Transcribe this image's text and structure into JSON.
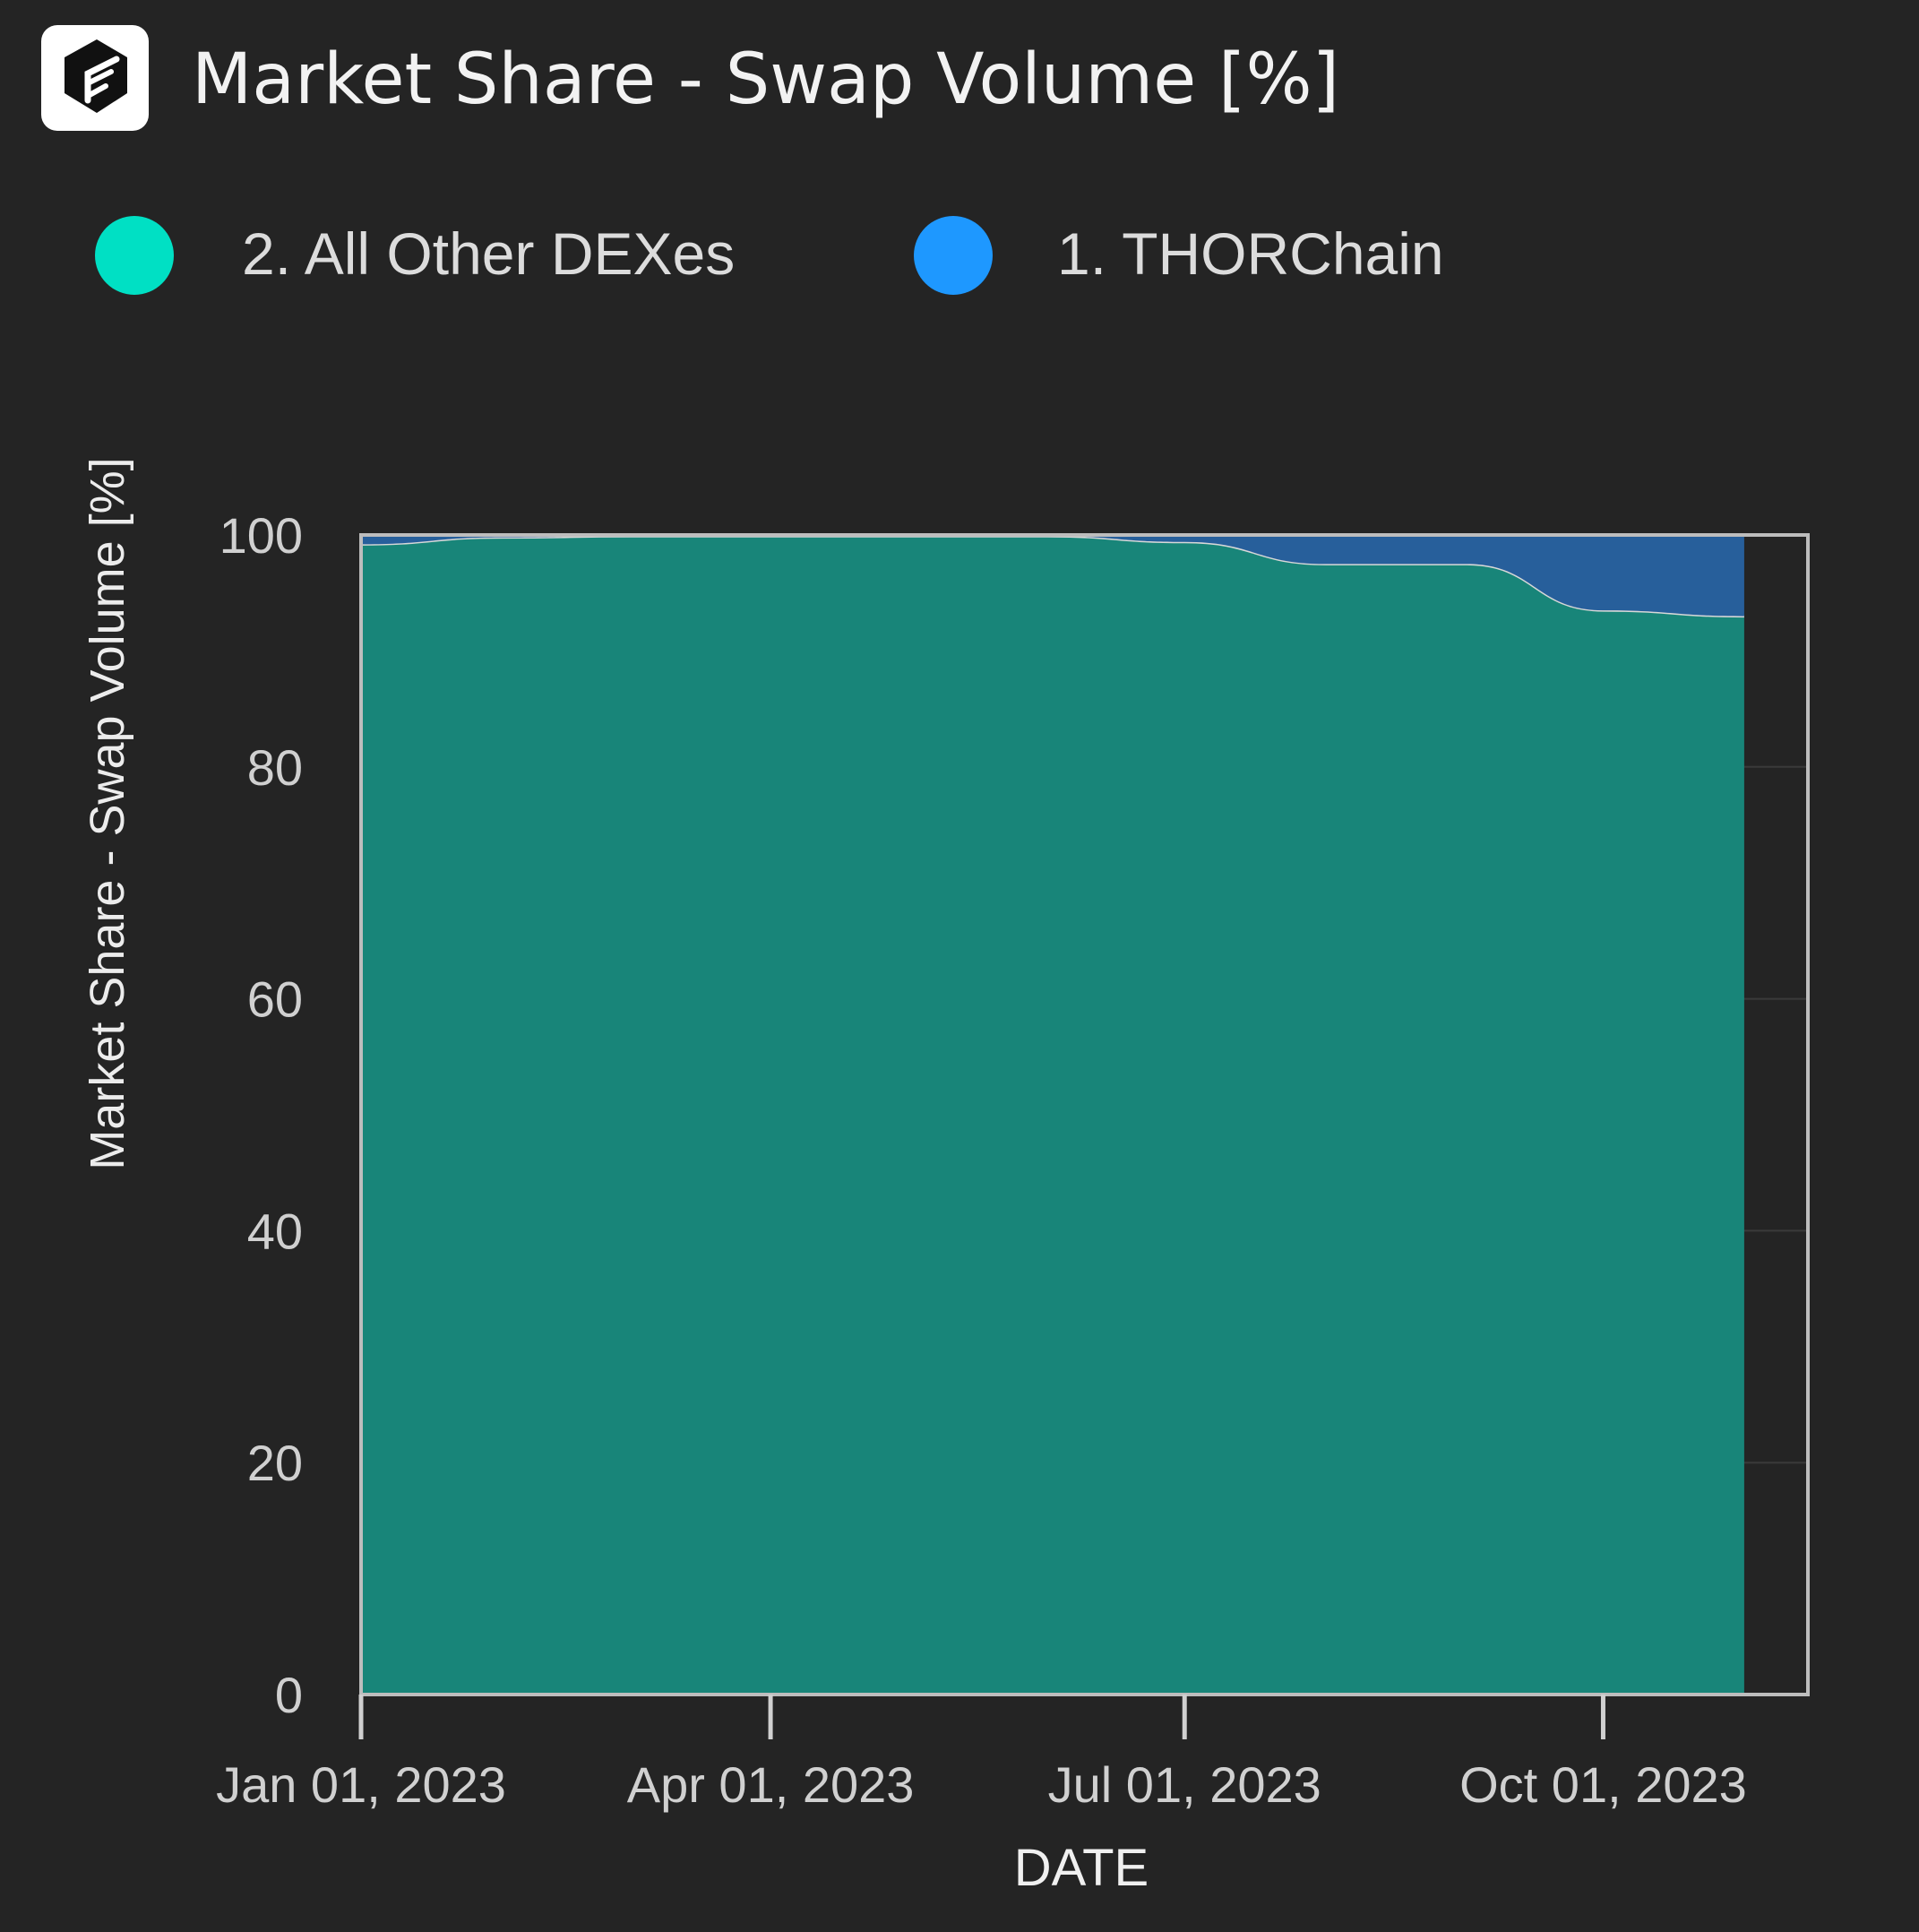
{
  "header": {
    "logo_icon": "flipside-logo-icon",
    "title": "Market Share - Swap Volume [%]"
  },
  "chart_data": {
    "type": "area",
    "stacked": true,
    "title": "Market Share - Swap Volume [%]",
    "xlabel": "DATE",
    "ylabel": "Market Share - Swap Volume [%]",
    "ylim": [
      0,
      100
    ],
    "yticks": [
      0,
      20,
      40,
      60,
      80,
      100
    ],
    "xticks": [
      "Jan 01, 2023",
      "Apr 01, 2023",
      "Jul 01, 2023",
      "Oct 01, 2023"
    ],
    "x_tick_dates": [
      "2023-01-01",
      "2023-04-01",
      "2023-07-01",
      "2023-10-01"
    ],
    "grid": true,
    "legend_position": "top",
    "x": [
      "2023-01-01",
      "2023-02-01",
      "2023-03-01",
      "2023-04-01",
      "2023-05-01",
      "2023-06-01",
      "2023-07-01",
      "2023-08-01",
      "2023-09-01",
      "2023-10-01",
      "2023-11-01"
    ],
    "series": [
      {
        "name": "2. All Other DEXes",
        "color": "#188579",
        "legend_color": "#00e0c4",
        "values": [
          99.2,
          99.8,
          99.9,
          99.9,
          99.9,
          99.9,
          99.4,
          97.5,
          97.5,
          93.5,
          93.0
        ]
      },
      {
        "name": "1. THORChain",
        "color": "#275f9b",
        "legend_color": "#1e98ff",
        "values": [
          0.8,
          0.2,
          0.1,
          0.1,
          0.1,
          0.1,
          0.6,
          2.5,
          2.5,
          6.5,
          7.0
        ]
      }
    ]
  }
}
